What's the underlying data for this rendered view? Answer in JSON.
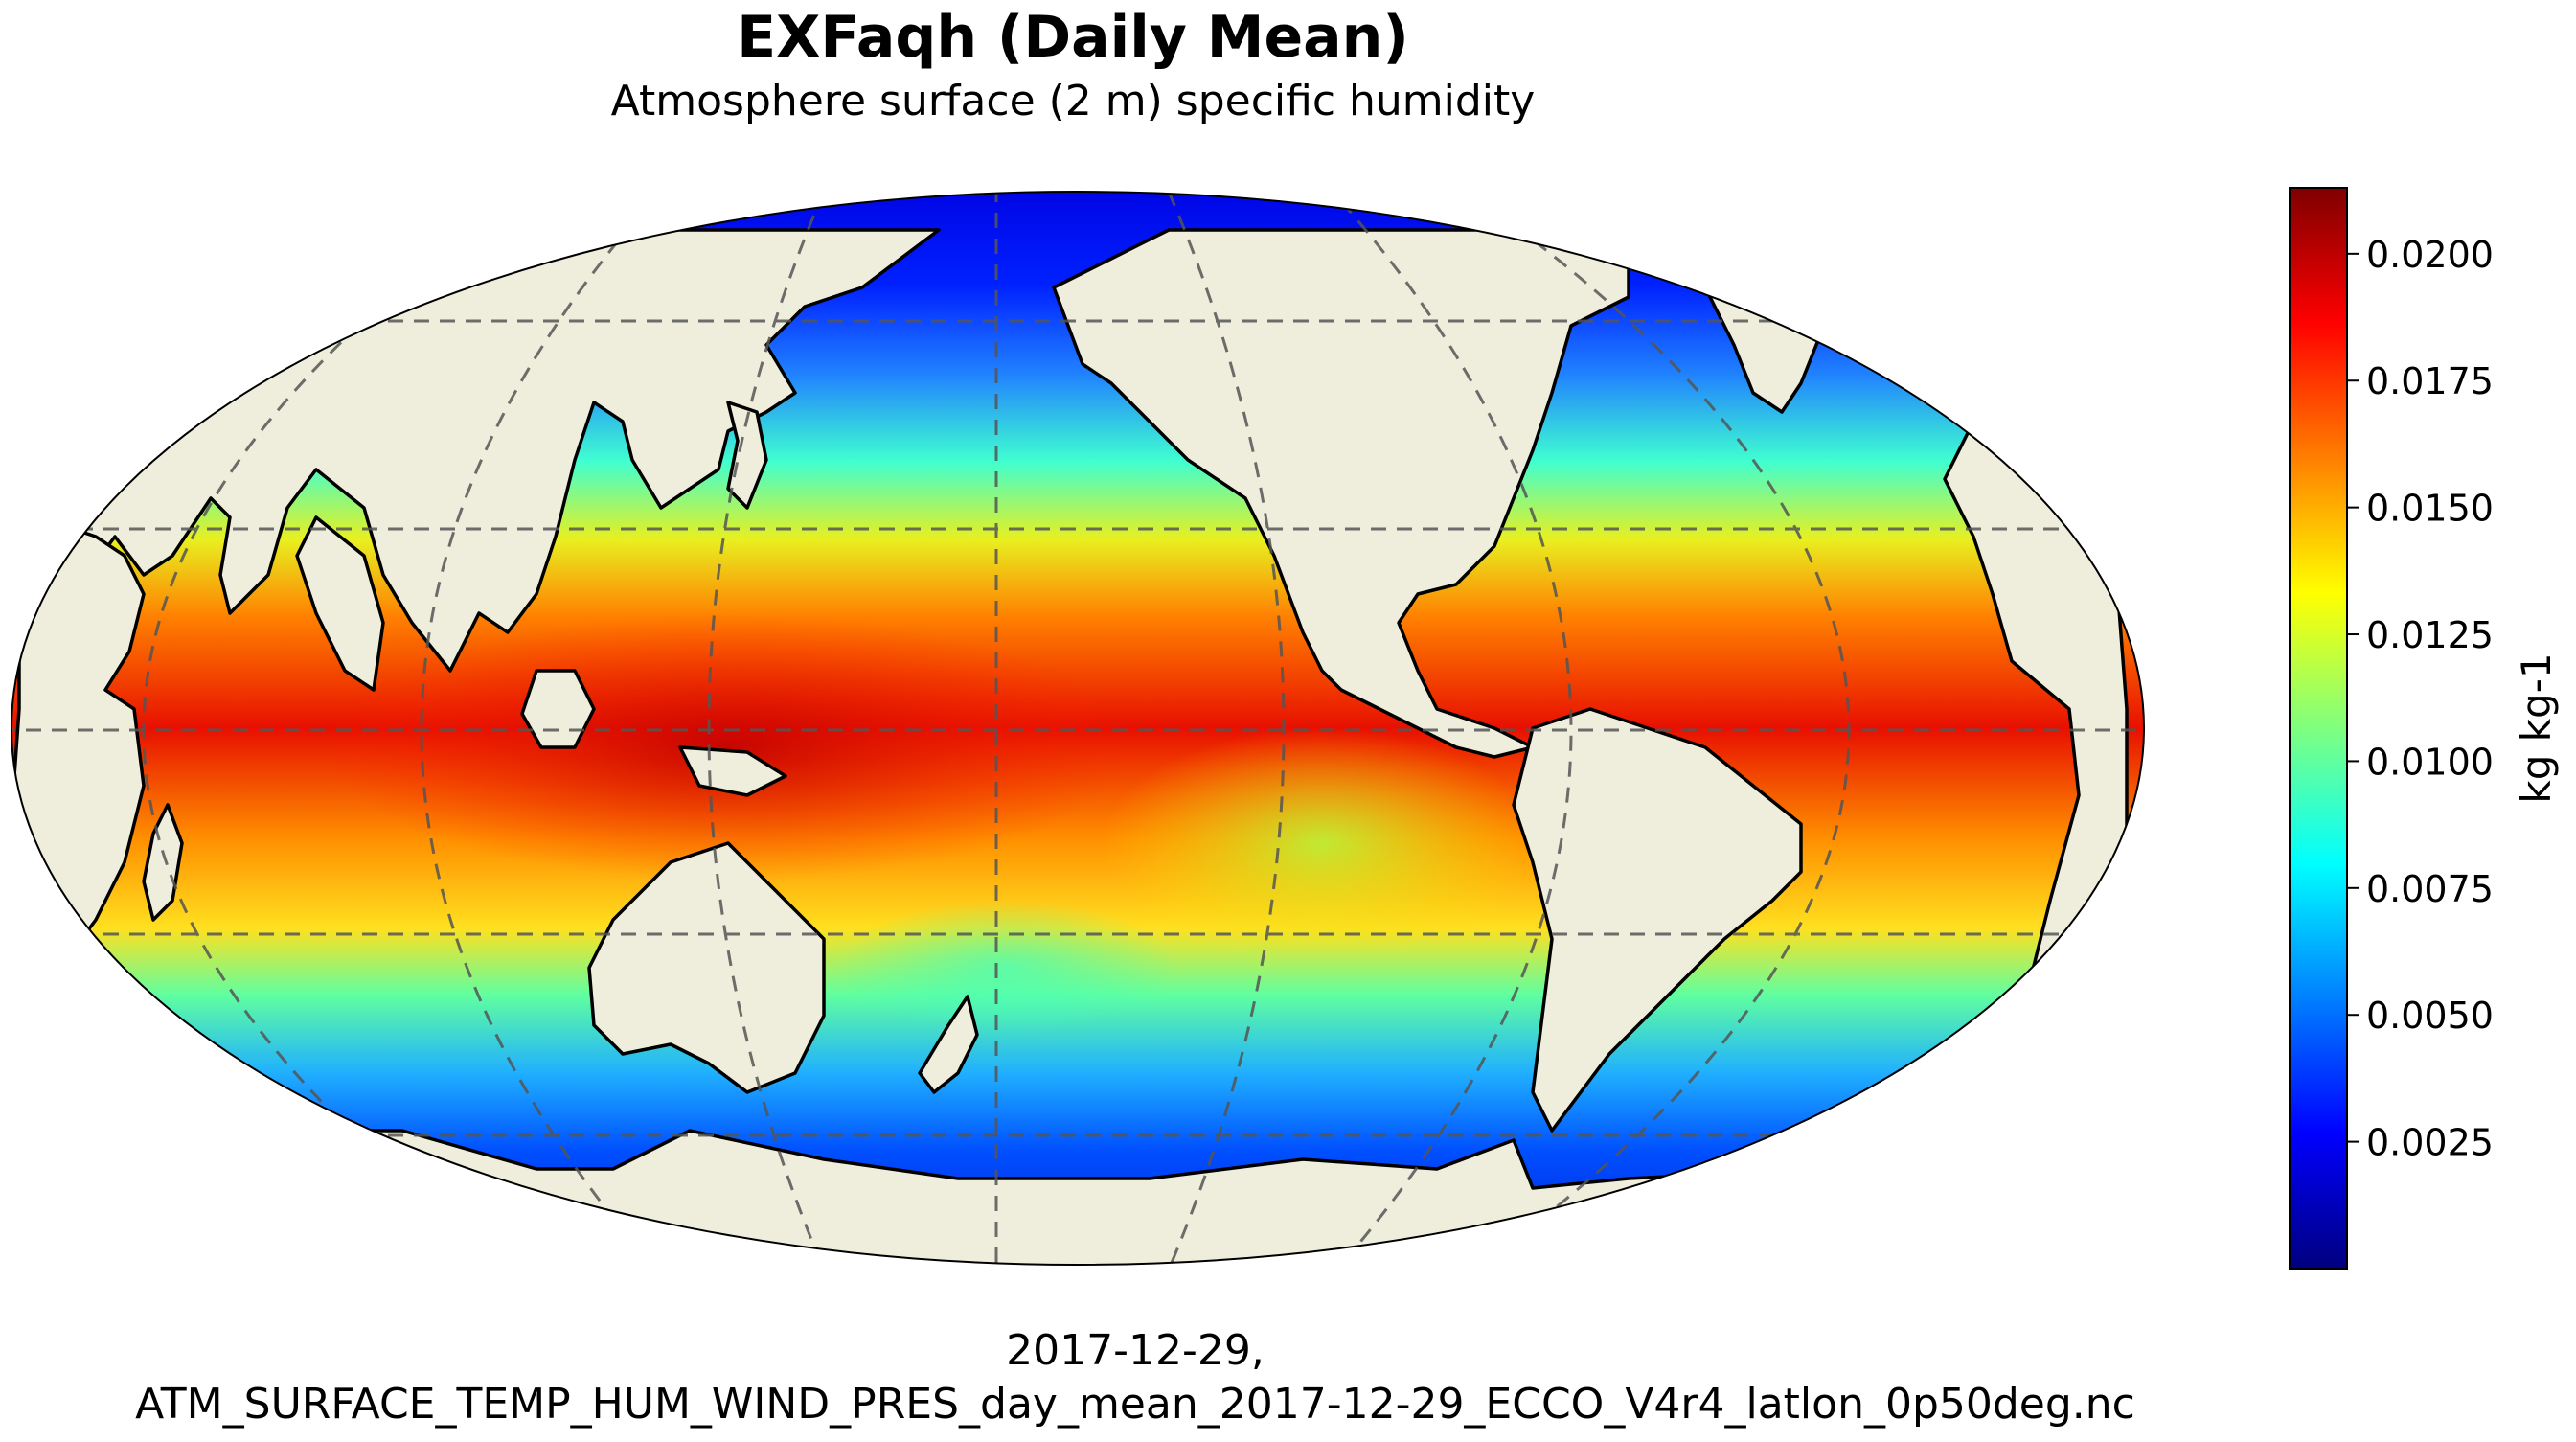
{
  "title": "EXFaqh (Daily Mean)",
  "subtitle": "Atmosphere surface (2 m) specific humidity",
  "footer": {
    "line1": "2017-12-29,",
    "line2": "ATM_SURFACE_TEMP_HUM_WIND_PRES_day_mean_2017-12-29_ECCO_V4r4_latlon_0p50deg.nc"
  },
  "colorbar": {
    "label": "kg kg-1",
    "ticks": [
      "0.0200",
      "0.0175",
      "0.0150",
      "0.0125",
      "0.0100",
      "0.0075",
      "0.0050",
      "0.0025"
    ],
    "tick_values": [
      0.02,
      0.0175,
      0.015,
      0.0125,
      0.01,
      0.0075,
      0.005,
      0.0025
    ],
    "vmin": 0.0,
    "vmax": 0.0213,
    "colormap": "jet",
    "colors": [
      "#00007f",
      "#0000ff",
      "#007fff",
      "#00ffff",
      "#7fff7f",
      "#ffff00",
      "#ff7f00",
      "#ff0000",
      "#7f0000"
    ]
  },
  "map": {
    "projection": "robinson",
    "central_longitude": 180,
    "land_color": "#efeedc",
    "coastline_color": "#000000",
    "gridline_style": "dashed",
    "gridline_color": "#555555",
    "parallels": [
      -60,
      -30,
      0,
      30,
      60
    ],
    "meridians": [
      120,
      180,
      240
    ]
  }
}
